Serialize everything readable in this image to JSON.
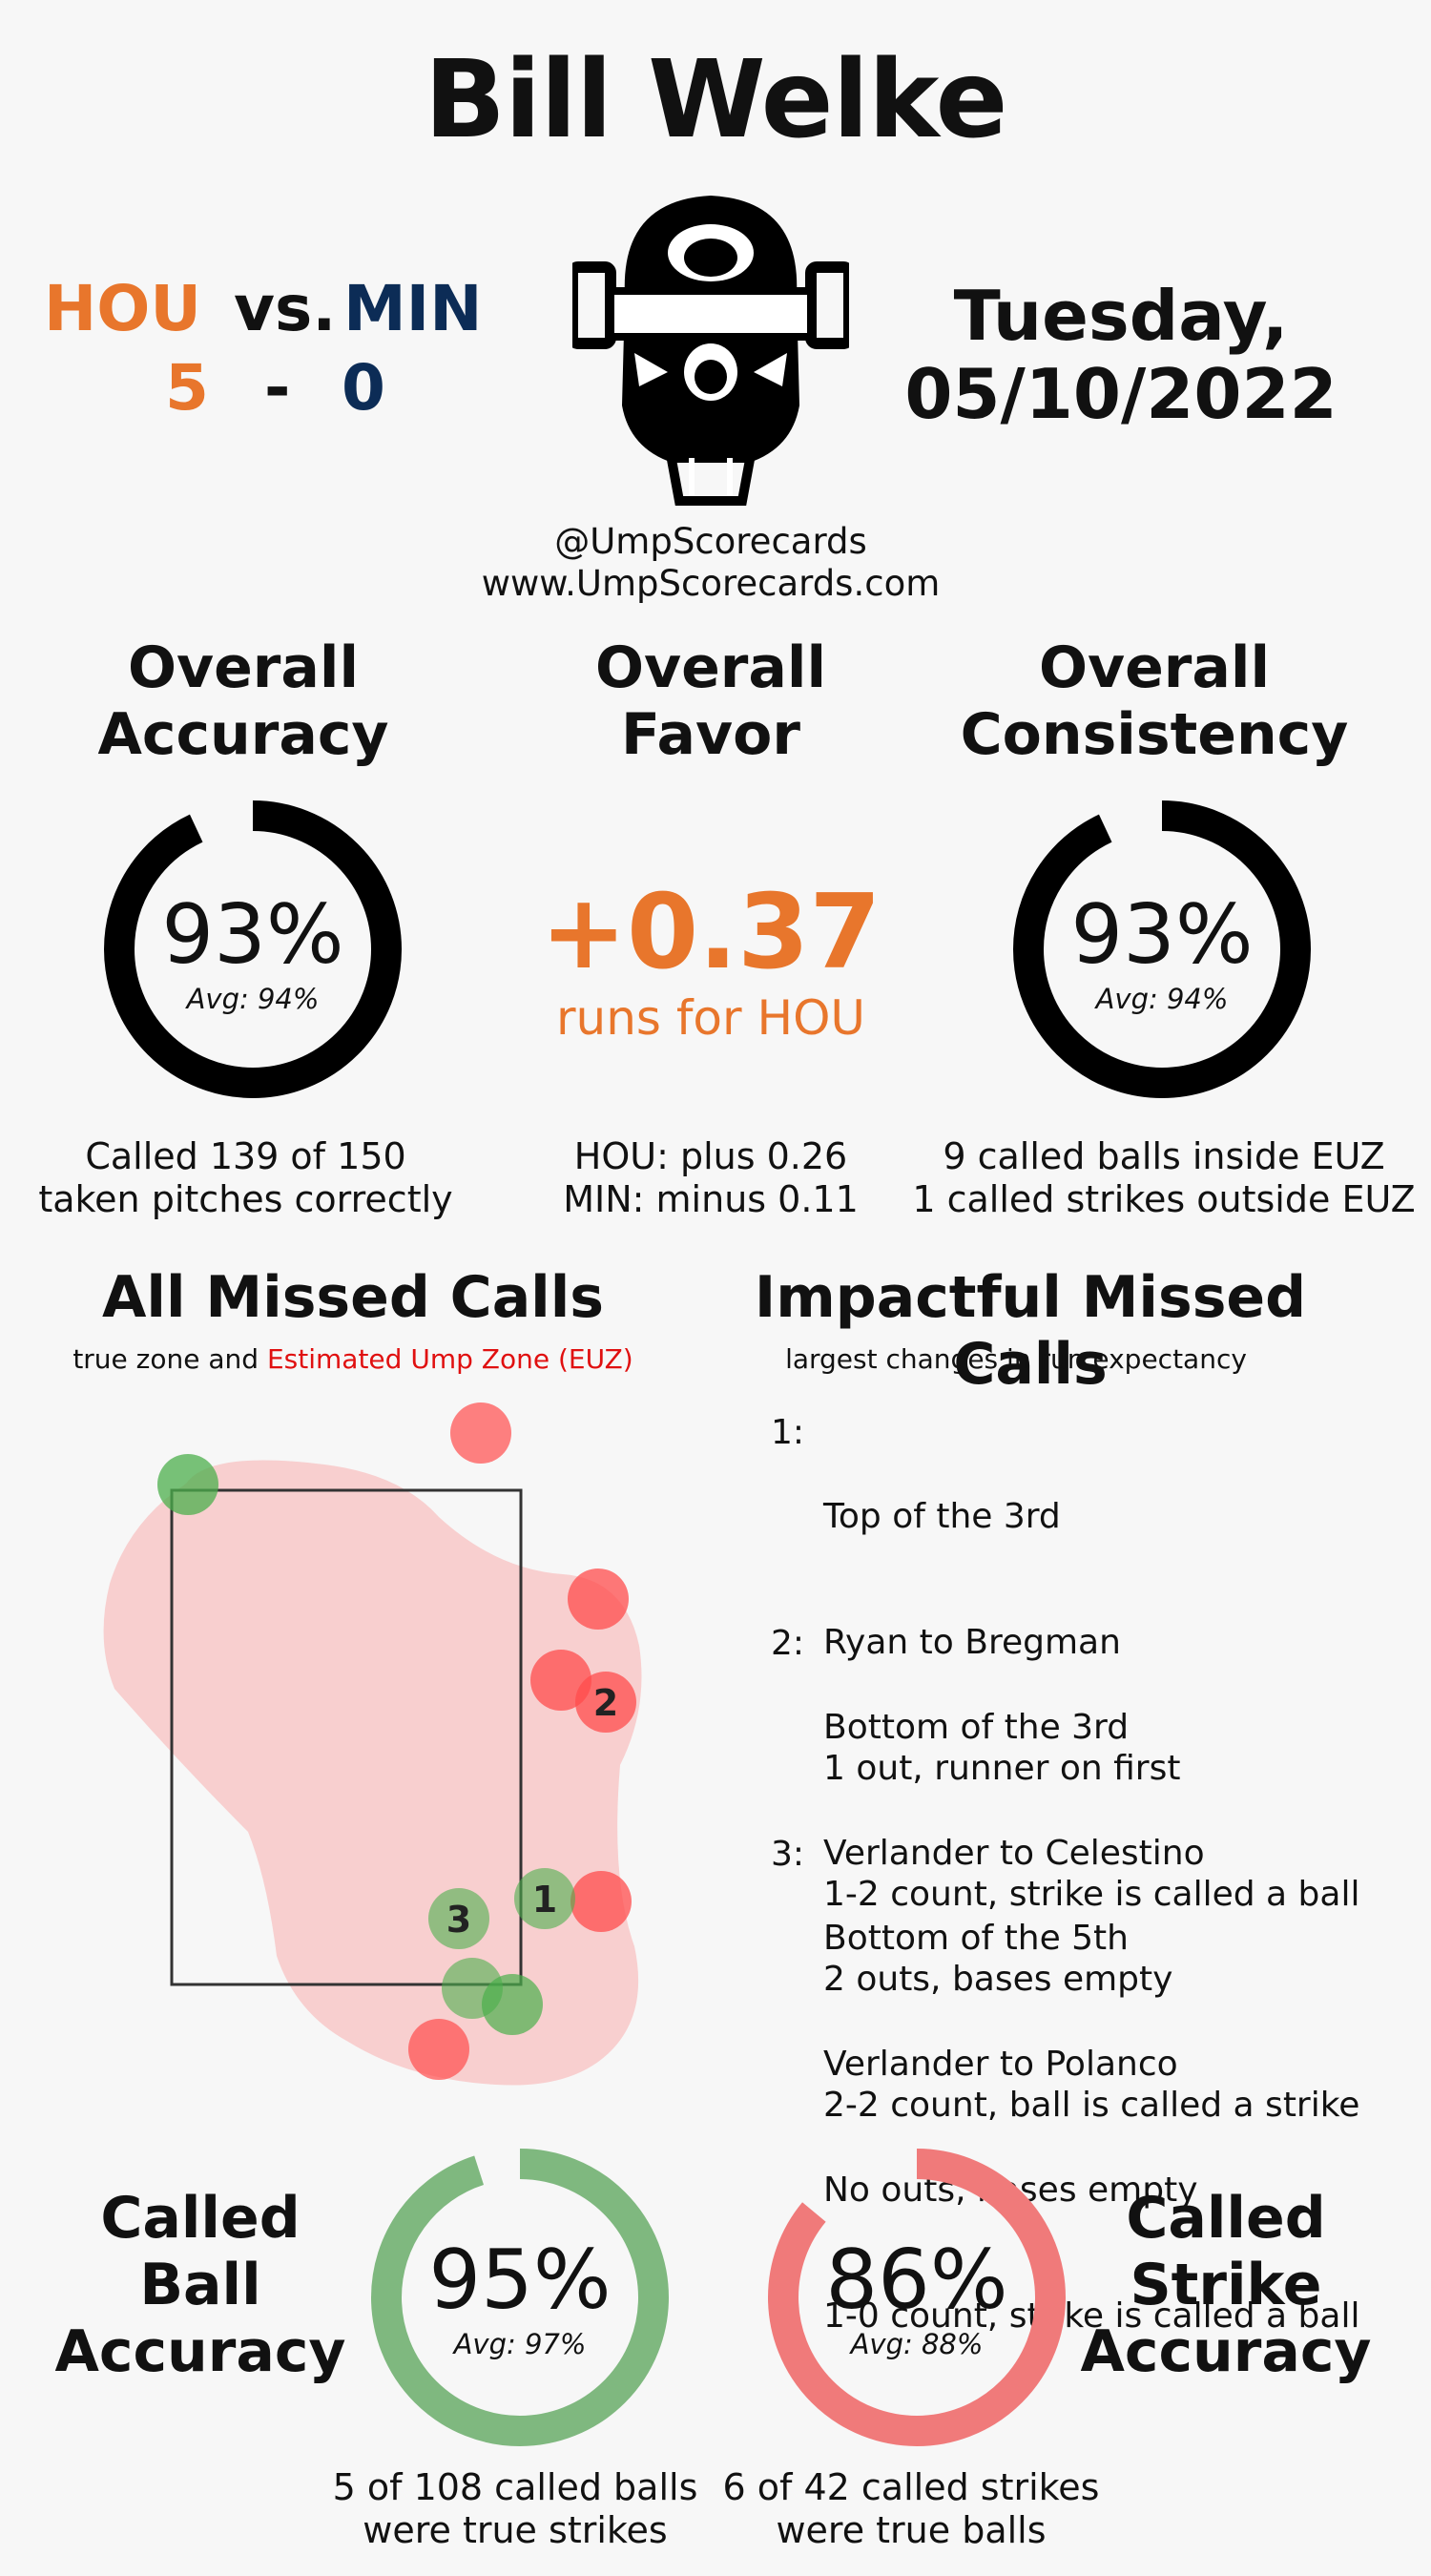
{
  "umpire": "Bill Welke",
  "game": {
    "away_team": "HOU",
    "vs_label": "vs.",
    "home_team": "MIN",
    "away_score": "5",
    "separator": "-",
    "home_score": "0",
    "date_line1": "Tuesday,",
    "date_line2": "05/10/2022"
  },
  "colors": {
    "hou": "#e8762c",
    "min": "#0c2c56",
    "ball_green": "#7fb87f",
    "strike_red": "#f08080",
    "euz_red": "#e01010"
  },
  "credits": {
    "handle": "@UmpScorecards",
    "site": "www.UmpScorecards.com"
  },
  "accuracy": {
    "title1": "Overall",
    "title2": "Accuracy",
    "value": "93%",
    "avg": "Avg: 94%",
    "fraction": 0.93,
    "caption1": "Called 139 of 150",
    "caption2": "taken pitches correctly"
  },
  "favor": {
    "title1": "Overall",
    "title2": "Favor",
    "value": "+0.37",
    "unit": "runs for HOU",
    "caption1": "HOU: plus 0.26",
    "caption2": "MIN: minus 0.11"
  },
  "consistency": {
    "title1": "Overall",
    "title2": "Consistency",
    "value": "93%",
    "avg": "Avg: 94%",
    "fraction": 0.93,
    "caption1": "9 called balls inside EUZ",
    "caption2": "1 called strikes outside EUZ"
  },
  "missed": {
    "title": "All Missed Calls",
    "sub_prefix": "true zone and",
    "sub_euz": "Estimated Ump Zone (EUZ)"
  },
  "impactful": {
    "title": "Impactful Missed Calls",
    "sub": "largest changes in run expectancy",
    "calls": [
      {
        "num": "1:",
        "inning": "Top of the 3rd",
        "matchup": "Ryan to Bregman",
        "situation": "1 out, runner on first",
        "result": "1-2 count, strike is called a ball"
      },
      {
        "num": "2:",
        "inning": "Bottom of the 3rd",
        "matchup": "Verlander to Celestino",
        "situation": "2 outs, bases empty",
        "result": "2-2 count, ball is called a strike"
      },
      {
        "num": "3:",
        "inning": "Bottom of the 5th",
        "matchup": "Verlander to Polanco",
        "situation": "No outs, bases empty",
        "result": "1-0 count, strike is called a ball"
      }
    ]
  },
  "ball_acc": {
    "title1": "Called",
    "title2": "Ball",
    "title3": "Accuracy",
    "value": "95%",
    "avg": "Avg: 97%",
    "fraction": 0.95,
    "caption1": "5 of 108 called balls",
    "caption2": "were true strikes"
  },
  "strike_acc": {
    "title1": "Called",
    "title2": "Strike",
    "title3": "Accuracy",
    "value": "86%",
    "avg": "Avg: 88%",
    "fraction": 0.86,
    "caption1": "6 of 42 called strikes",
    "caption2": "were true balls"
  },
  "pitch_labels": [
    "1",
    "2",
    "3"
  ]
}
